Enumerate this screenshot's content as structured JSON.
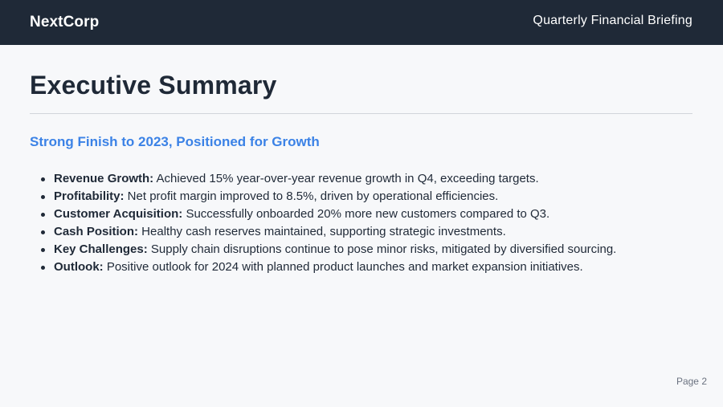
{
  "header": {
    "brand": "NextCorp",
    "deck_title": "Quarterly Financial Briefing"
  },
  "slide": {
    "title": "Executive Summary",
    "subtitle": "Strong Finish to 2023, Positioned for Growth",
    "bullets": [
      {
        "label": "Revenue Growth:",
        "text": " Achieved 15% year-over-year revenue growth in Q4, exceeding targets."
      },
      {
        "label": "Profitability:",
        "text": " Net profit margin improved to 8.5%, driven by operational efficiencies."
      },
      {
        "label": "Customer Acquisition:",
        "text": " Successfully onboarded 20% more new customers compared to Q3."
      },
      {
        "label": "Cash Position:",
        "text": " Healthy cash reserves maintained, supporting strategic investments."
      },
      {
        "label": "Key Challenges:",
        "text": " Supply chain disruptions continue to pose minor risks, mitigated by diversified sourcing."
      },
      {
        "label": "Outlook:",
        "text": " Positive outlook for 2024 with planned product launches and market expansion initiatives."
      }
    ]
  },
  "footer": {
    "page_label": "Page 2"
  },
  "colors": {
    "header_bg": "#1f2937",
    "accent": "#3b82e6",
    "page_bg": "#f7f8fa"
  }
}
